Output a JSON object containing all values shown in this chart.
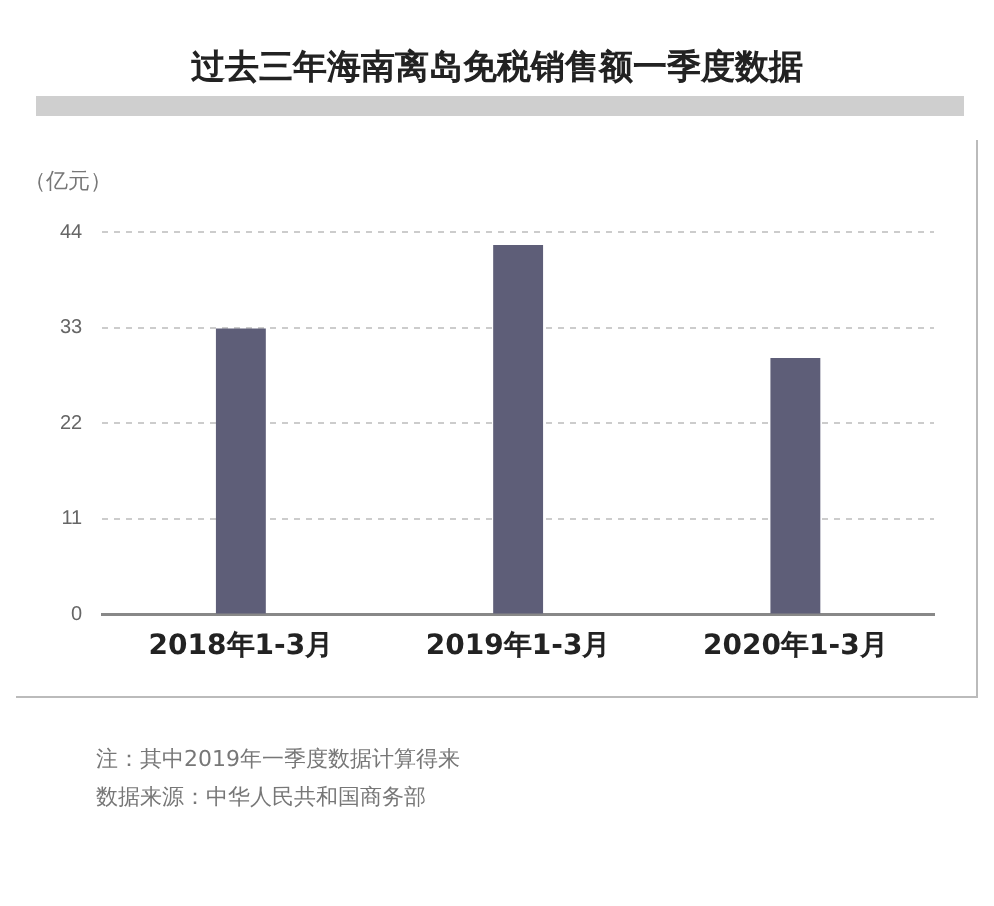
{
  "chart_data": {
    "type": "bar",
    "title": "过去三年海南离岛免税销售额一季度数据",
    "ylabel": "（亿元）",
    "categories": [
      "2018年1-3月",
      "2019年1-3月",
      "2020年1-3月"
    ],
    "values": [
      32.9,
      42.5,
      29.5
    ],
    "color": "#5e5e78",
    "ylim": [
      0,
      44
    ],
    "yticks": [
      0,
      11,
      22,
      33,
      44
    ],
    "grid": "y",
    "legend": false,
    "annotations": [
      "注：其中2019年一季度数据计算得来",
      "数据来源：中华人民共和国商务部"
    ]
  }
}
